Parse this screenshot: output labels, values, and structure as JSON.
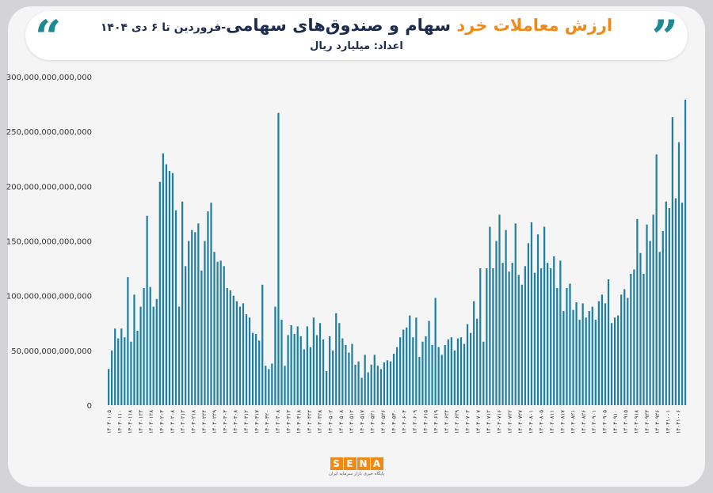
{
  "header": {
    "title_orange": "ارزش معاملات خرد",
    "title_navy": "سهام و صندوق‌های سهامی",
    "title_small": "-فروردین تا ۶ دی ۱۴۰۴",
    "unit": "اعداد: میلیارد ریال",
    "quote_left_icon": "open-quote-icon",
    "quote_right_icon": "close-quote-icon"
  },
  "colors": {
    "bar": "#1e7fa1",
    "accent": "#1d8a93",
    "orange": "#ef8a17",
    "navy": "#1d2b4f"
  },
  "logo": {
    "letters": [
      "S",
      "E",
      "N",
      "A"
    ],
    "subtitle": "پایگاه خبری بازار سرمایه ایران"
  },
  "chart_data": {
    "type": "bar",
    "title": "ارزش معاملات خرد سهام و صندوق‌های سهامی",
    "ylim": [
      0,
      300000000000000
    ],
    "y_ticks": [
      {
        "value": 0,
        "label": "0"
      },
      {
        "value": 50000000000000,
        "label": "50,000,000,000,000"
      },
      {
        "value": 100000000000000,
        "label": "100,000,000,000,000"
      },
      {
        "value": 150000000000000,
        "label": "150,000,000,000,000"
      },
      {
        "value": 200000000000000,
        "label": "200,000,000,000,000"
      },
      {
        "value": 250000000000000,
        "label": "250,000,000,000,000"
      },
      {
        "value": 300000000000000,
        "label": "300,000,000,000,000"
      }
    ],
    "x_tick_labels": [
      "۱۴۰۴۰۱۰۵",
      "۱۴۰۴۰۱۱۰",
      "۱۴۰۴۰۱۱۸",
      "۱۴۰۴۰۱۲۳",
      "۱۴۰۴۰۱۲۸",
      "۱۴۰۴۰۲۰۳",
      "۱۴۰۴۰۲۰۸",
      "۱۴۰۴۰۲۱۳",
      "۱۴۰۴۰۲۱۸",
      "۱۴۰۴۰۲۲۴",
      "۱۴۰۴۰۲۲۹",
      "۱۴۰۴۰۳۰۳",
      "۱۴۰۴۰۳۰۸",
      "۱۴۰۴۰۳۱۲",
      "۱۴۰۴۰۳۱۷",
      "۱۴۰۴۰۳۲۰",
      "۱۴۰۴۰۴۰۸",
      "۱۴۰۴۰۴۱۳",
      "۱۴۰۴۰۴۱۸",
      "۱۴۰۴۰۴۲۲",
      "۱۴۰۴۰۴۲۸",
      "۱۴۰۴۰۵۰۲",
      "۱۴۰۴۰۵۰۸",
      "۱۴۰۴۰۵۱۲",
      "۱۴۰۴۰۵۱۷",
      "۱۴۰۴۰۵۲۱",
      "۱۴۰۴۰۵۲۶",
      "۱۴۰۴۰۵۳۰",
      "۱۴۰۴۰۶۰۴",
      "۱۴۰۴۰۶۰۹",
      "۱۴۰۴۰۶۱۵",
      "۱۴۰۴۰۶۱۹",
      "۱۴۰۴۰۶۲۴",
      "۱۴۰۴۰۶۲۹",
      "۱۴۰۴۰۷۰۳",
      "۱۴۰۴۰۷۰۷",
      "۱۴۰۴۰۷۱۲",
      "۱۴۰۴۰۷۱۶",
      "۱۴۰۴۰۷۲۲",
      "۱۴۰۴۰۷۲۷",
      "۱۴۰۴۰۸۰۱",
      "۱۴۰۴۰۸۰۵",
      "۱۴۰۴۰۸۱۱",
      "۱۴۰۴۰۸۱۷",
      "۱۴۰۴۰۸۲۱",
      "۱۴۰۴۰۸۲۶",
      "۱۴۰۴۰۹۰۱",
      "۱۴۰۴۰۹۰۵",
      "۱۴۰۴۰۹۱۰",
      "۱۴۰۴۰۹۱۵",
      "۱۴۰۴۰۹۱۸",
      "۱۴۰۴۰۹۲۳",
      "۱۴۰۴۰۹۲۶",
      "۱۴۰۴۱۰۰۱",
      "۱۴۰۴۱۰۰۶"
    ],
    "values": [
      33,
      50,
      70,
      61,
      70,
      62,
      117,
      58,
      101,
      68,
      90,
      107,
      173,
      108,
      90,
      97,
      204,
      230,
      220,
      214,
      212,
      178,
      90,
      186,
      127,
      150,
      160,
      158,
      166,
      123,
      150,
      177,
      185,
      140,
      131,
      132,
      127,
      107,
      105,
      100,
      95,
      90,
      93,
      83,
      80,
      66,
      65,
      59,
      110,
      36,
      33,
      38,
      90,
      267,
      78,
      36,
      64,
      73,
      65,
      72,
      63,
      51,
      72,
      53,
      80,
      64,
      75,
      60,
      31,
      63,
      50,
      84,
      75,
      61,
      55,
      48,
      56,
      37,
      40,
      25,
      46,
      30,
      37,
      46,
      36,
      33,
      39,
      41,
      40,
      47,
      53,
      62,
      69,
      71,
      82,
      62,
      80,
      44,
      58,
      63,
      77,
      55,
      98,
      53,
      46,
      55,
      60,
      62,
      50,
      61,
      62,
      56,
      74,
      66,
      95,
      79,
      125,
      58,
      125,
      163,
      125,
      150,
      174,
      130,
      160,
      122,
      130,
      166,
      119,
      110,
      127,
      148,
      167,
      121,
      156,
      125,
      163,
      130,
      125,
      136,
      107,
      132,
      86,
      107,
      111,
      87,
      94,
      78,
      93,
      80,
      86,
      90,
      78,
      95,
      101,
      93,
      115,
      75,
      80,
      82,
      101,
      106,
      98,
      120,
      124,
      170,
      139,
      120,
      165,
      150,
      174,
      229,
      140,
      159,
      186,
      180,
      263,
      189,
      240,
      185,
      279
    ]
  }
}
